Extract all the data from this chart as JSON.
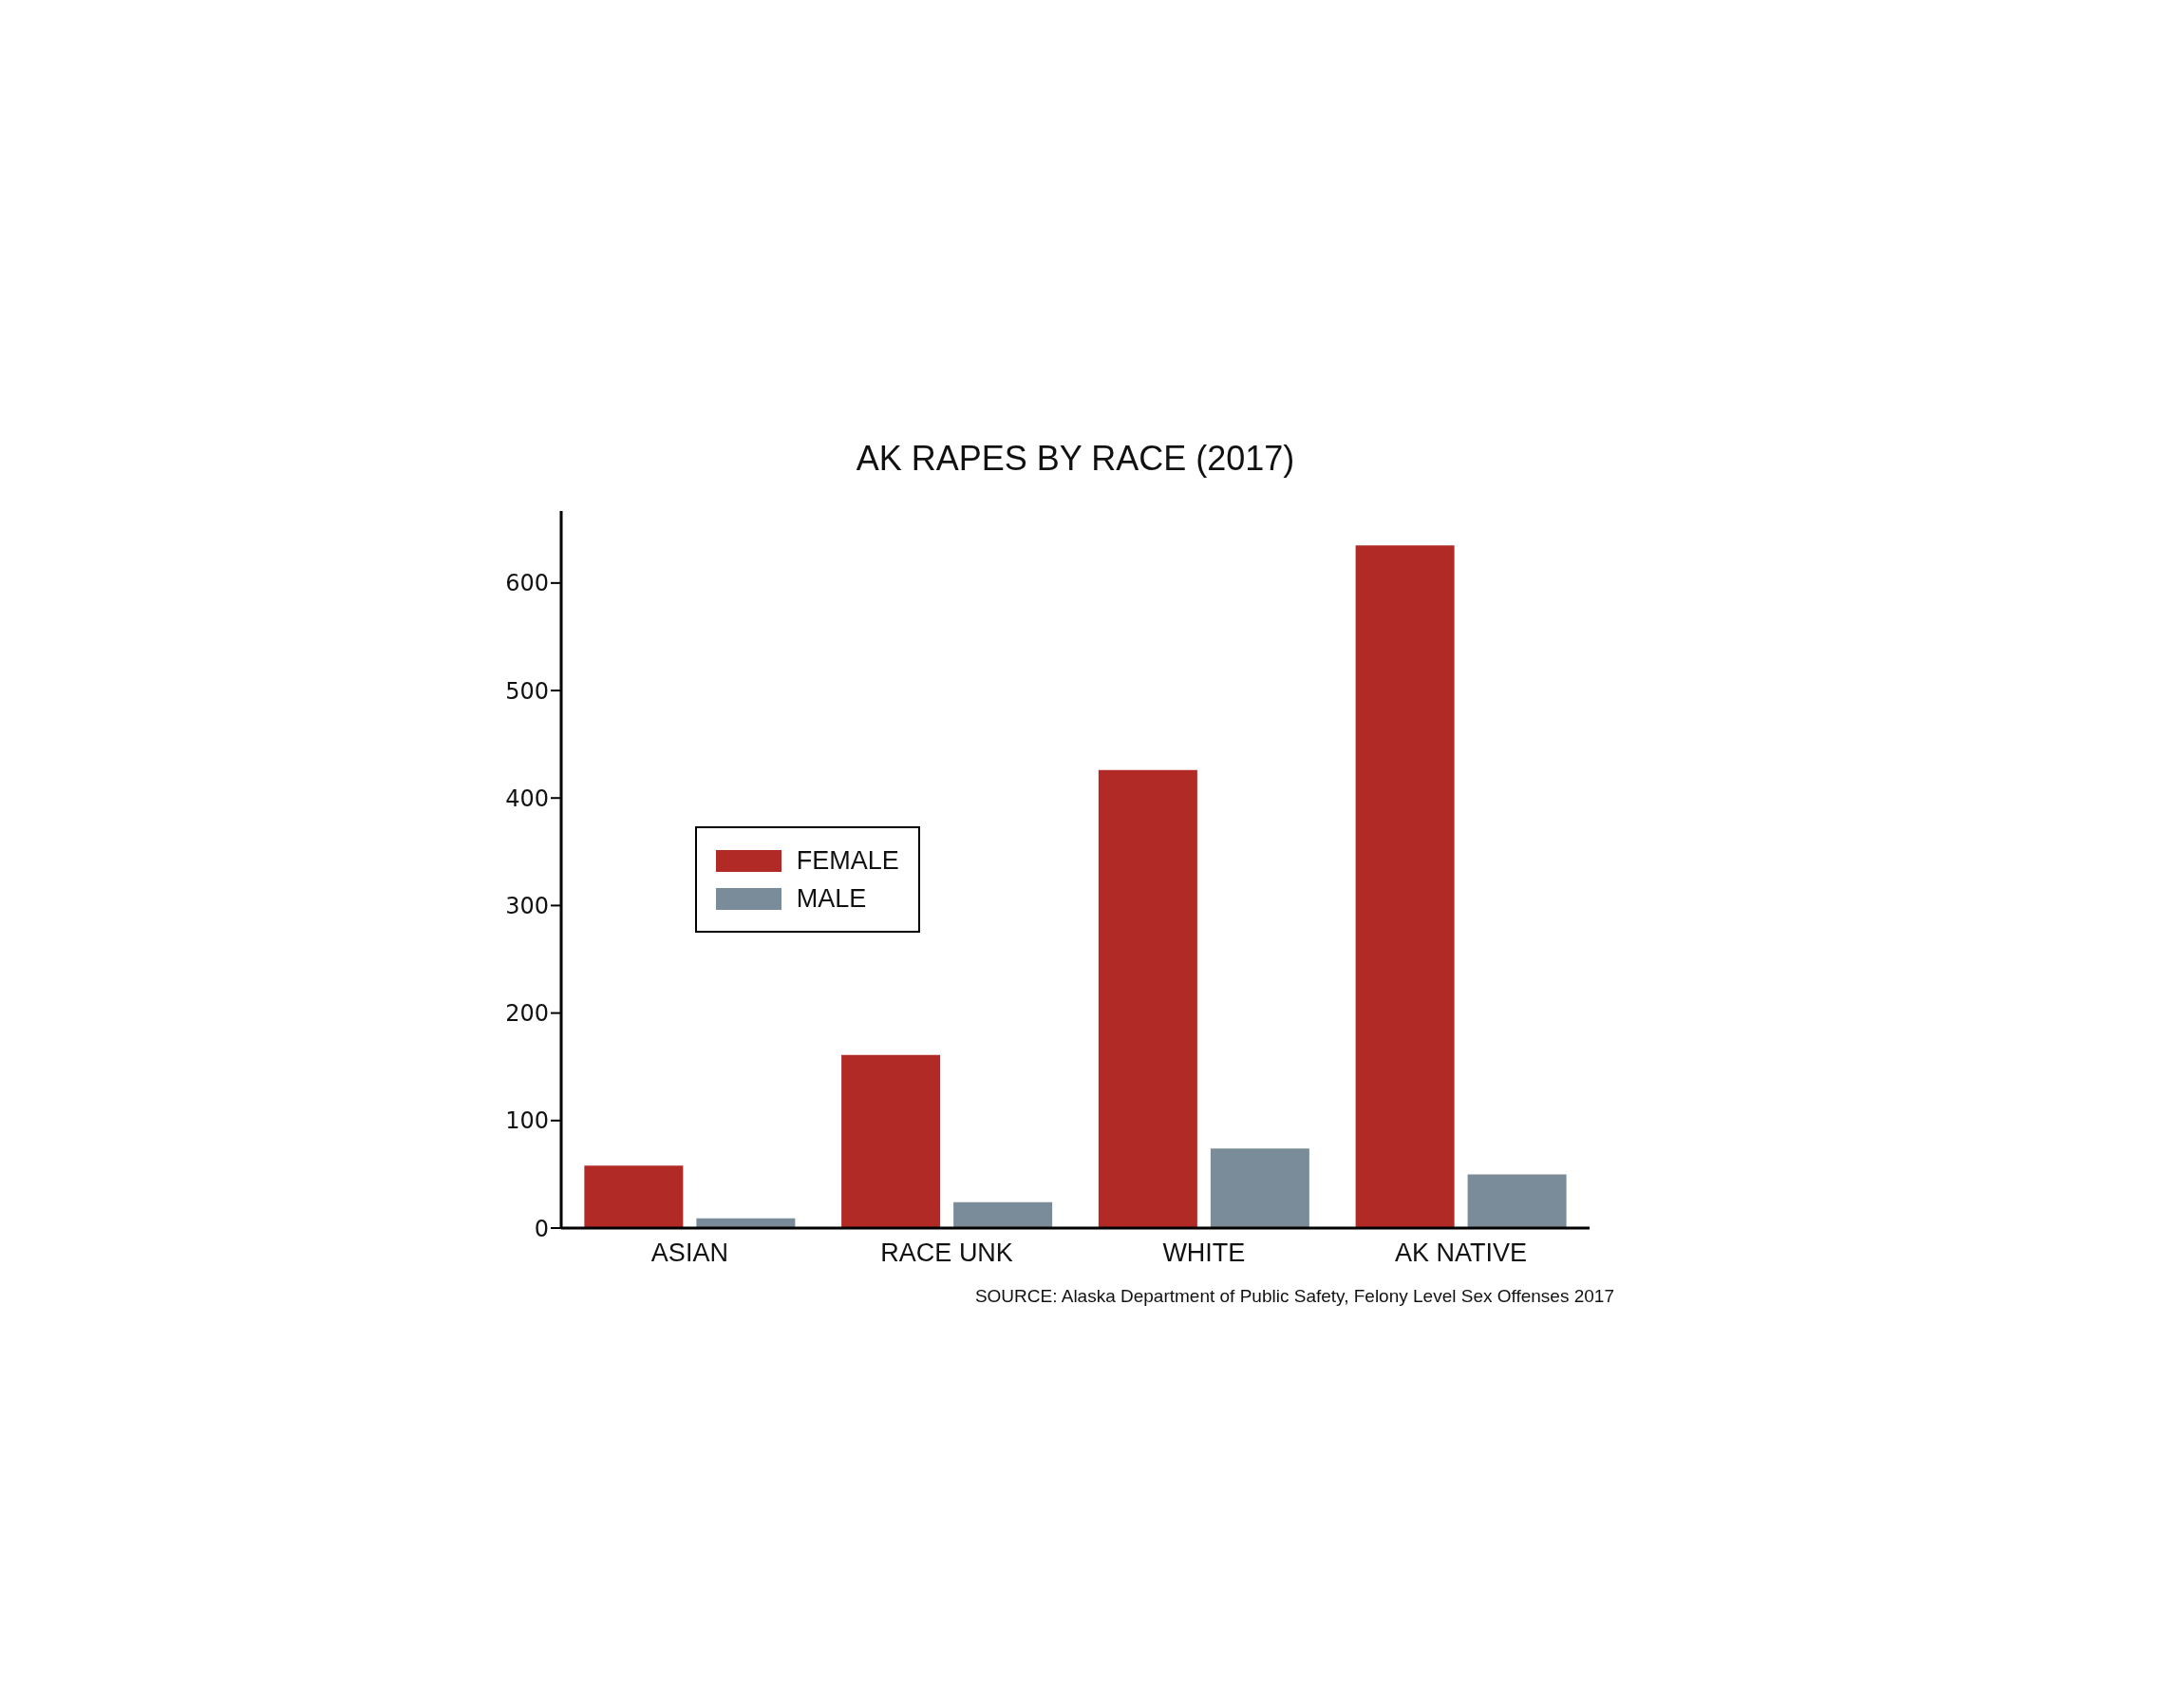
{
  "chart_data": {
    "type": "bar",
    "title": "AK RAPES BY RACE (2017)",
    "categories": [
      "ASIAN",
      "RACE UNK",
      "WHITE",
      "AK NATIVE"
    ],
    "series": [
      {
        "name": "FEMALE",
        "color": "#b12a26",
        "values": [
          58,
          161,
          426,
          635
        ]
      },
      {
        "name": "MALE",
        "color": "#7a8c99",
        "values": [
          9,
          24,
          74,
          50
        ]
      }
    ],
    "ylim": [
      0,
      667
    ],
    "yticks": [
      0,
      100,
      200,
      300,
      400,
      500,
      600
    ],
    "legend": "left",
    "annotations": [
      "SOURCE: Alaska Department of Public Safety, Felony Level Sex Offenses 2017"
    ]
  }
}
